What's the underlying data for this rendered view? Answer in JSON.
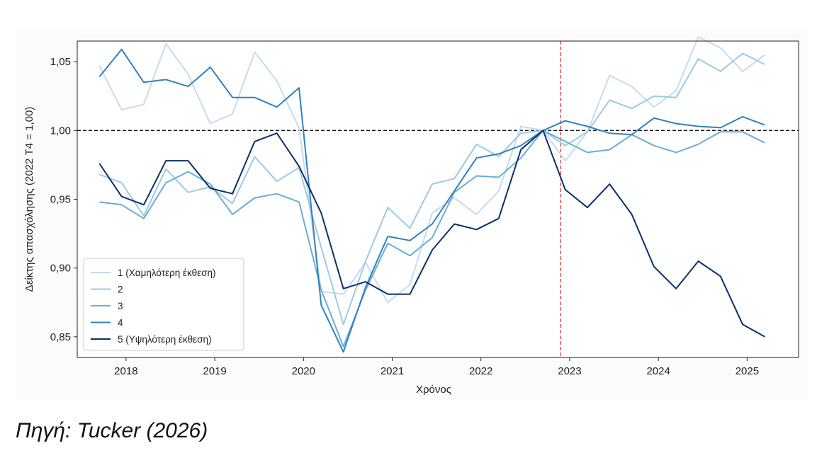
{
  "chart_data": {
    "type": "line",
    "xlabel": "Χρόνος",
    "ylabel": "Δείκτης απασχόλησης (2022 T4 = 1,00)",
    "ylim": [
      0.835,
      1.065
    ],
    "xlim": [
      2017.45,
      2025.58
    ],
    "yticks": [
      0.85,
      0.9,
      0.95,
      1.0,
      1.05
    ],
    "ytick_labels": [
      "0,85",
      "0,90",
      "0,95",
      "1,00",
      "1,05"
    ],
    "xticks": [
      2018,
      2019,
      2020,
      2021,
      2022,
      2023,
      2024,
      2025
    ],
    "xtick_labels": [
      "2018",
      "2019",
      "2020",
      "2021",
      "2022",
      "2023",
      "2024",
      "2025"
    ],
    "reference_hline": 1.0,
    "reference_vline": 2022.9,
    "legend_position": "lower-left",
    "x": [
      2017.7,
      2017.95,
      2018.2,
      2018.45,
      2018.7,
      2018.95,
      2019.2,
      2019.45,
      2019.7,
      2019.95,
      2020.2,
      2020.45,
      2020.7,
      2020.95,
      2021.2,
      2021.45,
      2021.7,
      2021.95,
      2022.2,
      2022.45,
      2022.7,
      2022.95,
      2023.2,
      2023.45,
      2023.7,
      2023.95,
      2024.2,
      2024.45,
      2024.7,
      2024.95,
      2025.2
    ],
    "series": [
      {
        "name": "1 (Χαμηλότερη έκθεση)",
        "color": "#c6dbef",
        "values": [
          1.047,
          1.015,
          1.019,
          1.063,
          1.041,
          1.005,
          1.012,
          1.057,
          1.036,
          1.002,
          0.883,
          0.881,
          0.904,
          0.875,
          0.888,
          0.94,
          0.951,
          0.939,
          0.956,
          1.003,
          1.0,
          0.978,
          0.999,
          1.04,
          1.032,
          1.017,
          1.029,
          1.068,
          1.06,
          1.043,
          1.055
        ]
      },
      {
        "name": "2",
        "color": "#9ecae1",
        "values": [
          0.968,
          0.962,
          0.938,
          0.972,
          0.955,
          0.959,
          0.947,
          0.981,
          0.963,
          0.973,
          0.915,
          0.859,
          0.905,
          0.944,
          0.929,
          0.961,
          0.965,
          0.99,
          0.981,
          0.998,
          1.0,
          0.989,
          0.999,
          1.022,
          1.016,
          1.025,
          1.024,
          1.052,
          1.043,
          1.056,
          1.048
        ]
      },
      {
        "name": "3",
        "color": "#6baed6",
        "values": [
          0.948,
          0.946,
          0.936,
          0.962,
          0.97,
          0.961,
          0.939,
          0.951,
          0.954,
          0.948,
          0.884,
          0.843,
          0.884,
          0.918,
          0.909,
          0.922,
          0.955,
          0.967,
          0.966,
          0.98,
          1.0,
          0.992,
          0.984,
          0.986,
          0.997,
          0.989,
          0.984,
          0.99,
          0.999,
          0.999,
          0.991
        ]
      },
      {
        "name": "4",
        "color": "#3182bd",
        "values": [
          1.039,
          1.059,
          1.035,
          1.037,
          1.032,
          1.046,
          1.024,
          1.024,
          1.017,
          1.031,
          0.873,
          0.839,
          0.886,
          0.923,
          0.92,
          0.932,
          0.956,
          0.98,
          0.983,
          0.989,
          1.0,
          1.007,
          1.003,
          0.998,
          0.997,
          1.009,
          1.005,
          1.003,
          1.002,
          1.01,
          1.004
        ]
      },
      {
        "name": "5 (Υψηλότερη έκθεση)",
        "color": "#08306b",
        "values": [
          0.976,
          0.952,
          0.946,
          0.978,
          0.978,
          0.958,
          0.954,
          0.992,
          0.998,
          0.974,
          0.94,
          0.885,
          0.89,
          0.881,
          0.881,
          0.913,
          0.932,
          0.928,
          0.936,
          0.986,
          1.0,
          0.957,
          0.944,
          0.961,
          0.939,
          0.901,
          0.885,
          0.905,
          0.894,
          0.859,
          0.85
        ]
      }
    ]
  },
  "source": "Πηγή: Tucker (2026)"
}
